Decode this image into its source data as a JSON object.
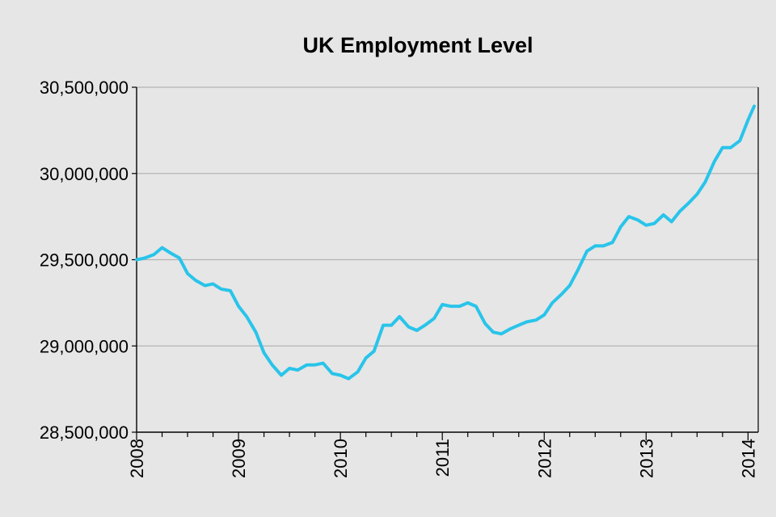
{
  "chart_data": {
    "type": "line",
    "title": "UK Employment Level",
    "xlabel": "",
    "ylabel": "",
    "ylim": [
      28500000,
      30500000
    ],
    "xlim": [
      2008.0,
      2014.1
    ],
    "grid": true,
    "legend": "none",
    "y_ticks": [
      {
        "value": 28500000,
        "label": "28,500,000"
      },
      {
        "value": 29000000,
        "label": "29,000,000"
      },
      {
        "value": 29500000,
        "label": "29,500,000"
      },
      {
        "value": 30000000,
        "label": "30,000,000"
      },
      {
        "value": 30500000,
        "label": "30,500,000"
      }
    ],
    "x_ticks": [
      {
        "value": 2008,
        "label": "2008"
      },
      {
        "value": 2009,
        "label": "2009"
      },
      {
        "value": 2010,
        "label": "2010"
      },
      {
        "value": 2011,
        "label": "2011"
      },
      {
        "value": 2012,
        "label": "2012"
      },
      {
        "value": 2013,
        "label": "2013"
      },
      {
        "value": 2014,
        "label": "2014"
      }
    ],
    "series": [
      {
        "color": "#29c4ea",
        "x": [
          2008.0,
          2008.08,
          2008.17,
          2008.25,
          2008.33,
          2008.42,
          2008.5,
          2008.58,
          2008.67,
          2008.75,
          2008.83,
          2008.92,
          2009.0,
          2009.08,
          2009.17,
          2009.25,
          2009.33,
          2009.42,
          2009.5,
          2009.58,
          2009.67,
          2009.75,
          2009.83,
          2009.92,
          2010.0,
          2010.08,
          2010.17,
          2010.25,
          2010.33,
          2010.42,
          2010.5,
          2010.58,
          2010.67,
          2010.75,
          2010.83,
          2010.92,
          2011.0,
          2011.08,
          2011.17,
          2011.25,
          2011.33,
          2011.42,
          2011.5,
          2011.58,
          2011.67,
          2011.75,
          2011.83,
          2011.92,
          2012.0,
          2012.08,
          2012.17,
          2012.25,
          2012.33,
          2012.42,
          2012.5,
          2012.58,
          2012.67,
          2012.75,
          2012.83,
          2012.92,
          2013.0,
          2013.08,
          2013.17,
          2013.25,
          2013.33,
          2013.42,
          2013.5,
          2013.58,
          2013.67,
          2013.75,
          2013.83,
          2013.92,
          2014.0,
          2014.06
        ],
        "values": [
          29500000,
          29510000,
          29530000,
          29570000,
          29540000,
          29510000,
          29420000,
          29380000,
          29350000,
          29360000,
          29330000,
          29320000,
          29230000,
          29170000,
          29080000,
          28960000,
          28890000,
          28830000,
          28870000,
          28860000,
          28890000,
          28890000,
          28900000,
          28840000,
          28830000,
          28810000,
          28850000,
          28930000,
          28970000,
          29120000,
          29120000,
          29170000,
          29110000,
          29090000,
          29120000,
          29160000,
          29240000,
          29230000,
          29230000,
          29250000,
          29230000,
          29130000,
          29080000,
          29070000,
          29100000,
          29120000,
          29140000,
          29150000,
          29180000,
          29250000,
          29300000,
          29350000,
          29440000,
          29550000,
          29580000,
          29580000,
          29600000,
          29690000,
          29750000,
          29730000,
          29700000,
          29710000,
          29760000,
          29720000,
          29780000,
          29830000,
          29880000,
          29950000,
          30070000,
          30150000,
          30150000,
          30190000,
          30310000,
          30390000
        ]
      }
    ]
  }
}
